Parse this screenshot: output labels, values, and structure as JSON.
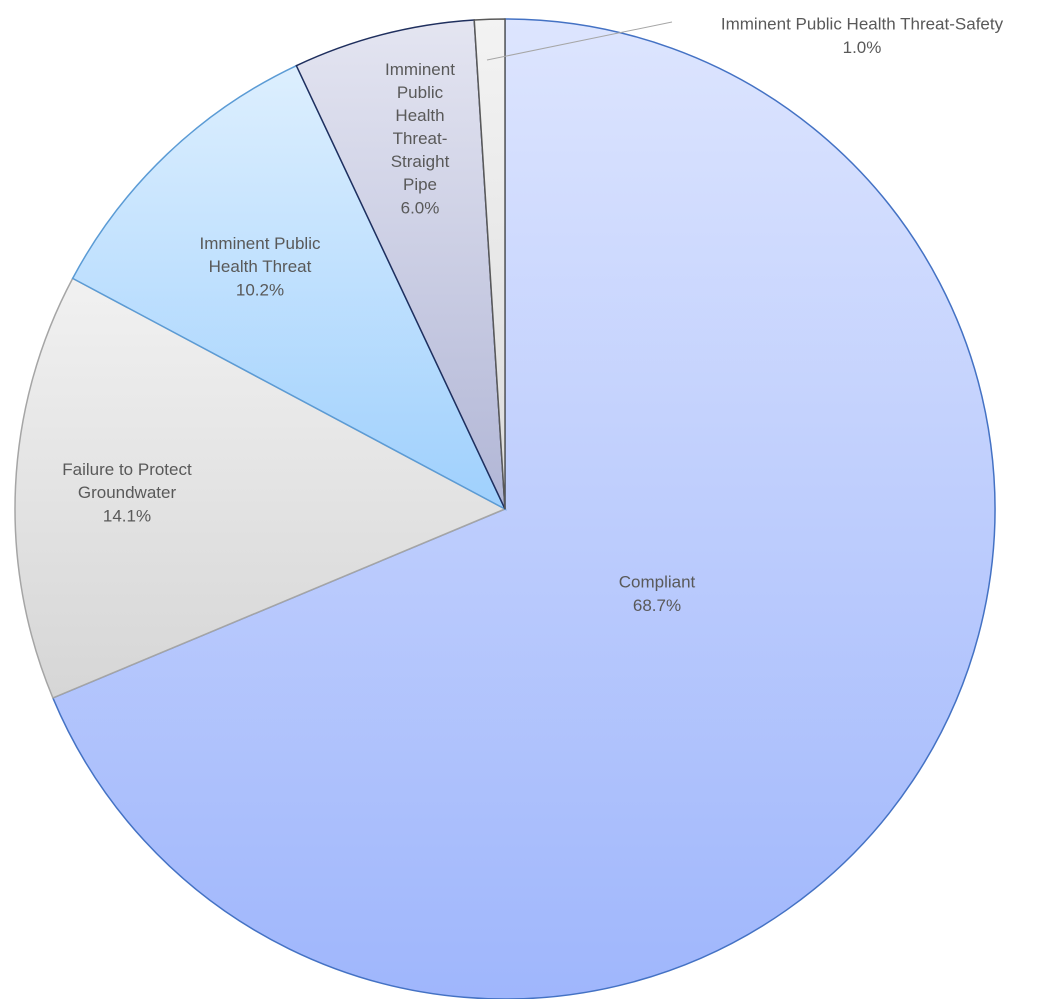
{
  "chart_data": {
    "type": "pie",
    "categories": [
      "Compliant",
      "Failure to Protect Groundwater",
      "Imminent Public Health Threat",
      "Imminent Public Health Threat-Straight Pipe",
      "Imminent Public Health Threat-Safety"
    ],
    "values": [
      68.7,
      14.1,
      10.2,
      6.0,
      1.0
    ],
    "value_labels": [
      "68.7%",
      "14.1%",
      "10.2%",
      "6.0%",
      "1.0%"
    ],
    "colors": [
      "#9fb6fc",
      "#d6d6d6",
      "#9fd0fd",
      "#b1b6d6",
      "#dcdcdc"
    ],
    "edge_colors": [
      "#4472c4",
      "#a5a5a5",
      "#5b9bd5",
      "#1f2f5e",
      "#595959"
    ],
    "start_angle": 0,
    "direction": "clockwise"
  }
}
